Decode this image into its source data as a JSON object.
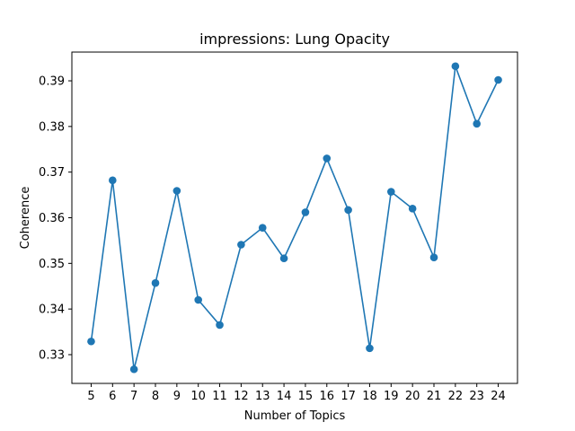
{
  "chart_data": {
    "type": "line",
    "title": "impressions: Lung Opacity",
    "xlabel": "Number of Topics",
    "ylabel": "Coherence",
    "x": [
      5,
      6,
      7,
      8,
      9,
      10,
      11,
      12,
      13,
      14,
      15,
      16,
      17,
      18,
      19,
      20,
      21,
      22,
      23,
      24
    ],
    "series": [
      {
        "values": [
          0.3329,
          0.3682,
          0.3268,
          0.3457,
          0.3659,
          0.342,
          0.3365,
          0.3541,
          0.3578,
          0.3511,
          0.3612,
          0.373,
          0.3617,
          0.3314,
          0.3657,
          0.362,
          0.3513,
          0.3932,
          0.3806,
          0.3902
        ],
        "color": "#1f77b4",
        "marker": "circle"
      }
    ],
    "xlim": [
      4.1,
      24.9
    ],
    "ylim": [
      0.3237,
      0.3963
    ],
    "yticks": [
      0.33,
      0.34,
      0.35,
      0.36,
      0.37,
      0.38,
      0.39
    ],
    "ytick_labels": [
      "0.33",
      "0.34",
      "0.35",
      "0.36",
      "0.37",
      "0.38",
      "0.39"
    ],
    "xticks": [
      5,
      6,
      7,
      8,
      9,
      10,
      11,
      12,
      13,
      14,
      15,
      16,
      17,
      18,
      19,
      20,
      21,
      22,
      23,
      24
    ],
    "xtick_labels": [
      "5",
      "6",
      "7",
      "8",
      "9",
      "10",
      "11",
      "12",
      "13",
      "14",
      "15",
      "16",
      "17",
      "18",
      "19",
      "20",
      "21",
      "22",
      "23",
      "24"
    ],
    "grid": false,
    "legend": "none"
  }
}
